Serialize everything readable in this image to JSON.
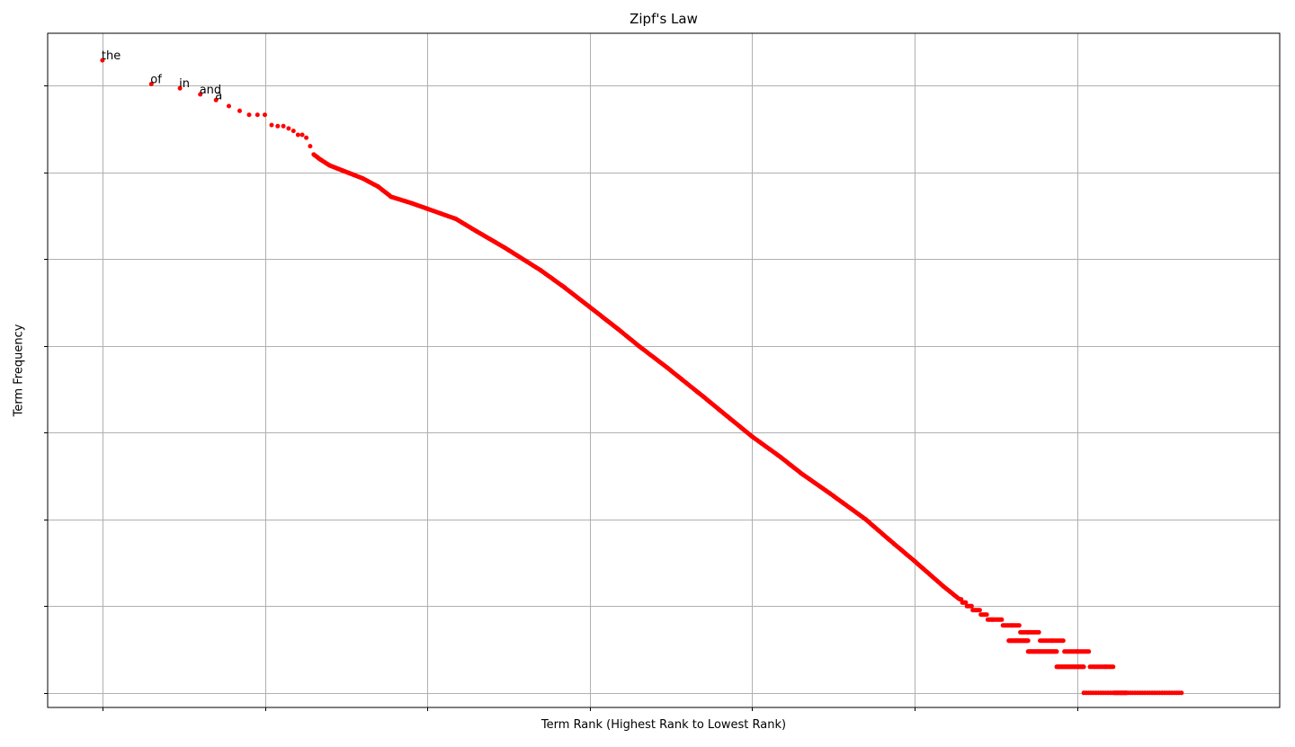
{
  "chart_data": {
    "type": "scatter",
    "title": "Zipf's Law",
    "xlabel": "Term Rank  (Highest Rank to Lowest Rank)",
    "ylabel": "Term Frequency",
    "xscale": "log",
    "yscale": "log",
    "grid": true,
    "xlim": [
      0.46,
      17700000.0
    ],
    "ylim": [
      0.68,
      40000000.0
    ],
    "xticks": [
      1,
      10,
      100,
      1000,
      10000,
      100000,
      1000000
    ],
    "yticks": [
      1,
      10,
      100,
      1000,
      10000,
      100000,
      1000000,
      10000000
    ],
    "tick_labels_visible": false,
    "marker_color": "#ff0000",
    "annotations": [
      {
        "text": "the",
        "rank": 1,
        "freq": 19500000
      },
      {
        "text": "of",
        "rank": 2,
        "freq": 10400000
      },
      {
        "text": "in",
        "rank": 3,
        "freq": 9300000
      },
      {
        "text": "and",
        "rank": 4,
        "freq": 7900000
      },
      {
        "text": "a",
        "rank": 5,
        "freq": 6800000
      }
    ],
    "series": [
      {
        "x": [
          1,
          2,
          3,
          4,
          5,
          6,
          7,
          8,
          9,
          10,
          11,
          12,
          13,
          14,
          15,
          16,
          17,
          18,
          19,
          20,
          22,
          25,
          30,
          40,
          50,
          60,
          80,
          100,
          150,
          200,
          300,
          500,
          700,
          1000,
          1500,
          2000,
          3000,
          5000,
          7000,
          10000,
          15000,
          20000,
          30000,
          50000,
          70000,
          100000,
          150000,
          200000,
          300000,
          400000,
          500000,
          700000,
          1000000,
          1500000,
          2000000
        ],
        "y": [
          19500000,
          10400000,
          9300000,
          7900000,
          6800000,
          5800000,
          5100000,
          4600000,
          4600000,
          4600000,
          3500000,
          3400000,
          3400000,
          3200000,
          3000000,
          2700000,
          2700000,
          2500000,
          2000000,
          1600000,
          1400000,
          1200000,
          1050000,
          850000,
          680000,
          520000,
          440000,
          380000,
          290000,
          210000,
          135000,
          74000,
          47000,
          28000,
          15500,
          10000,
          5600,
          2600,
          1550,
          900,
          520,
          340,
          200,
          100,
          58,
          33,
          17,
          11,
          7,
          6,
          5,
          4,
          3,
          2,
          1
        ]
      }
    ]
  }
}
